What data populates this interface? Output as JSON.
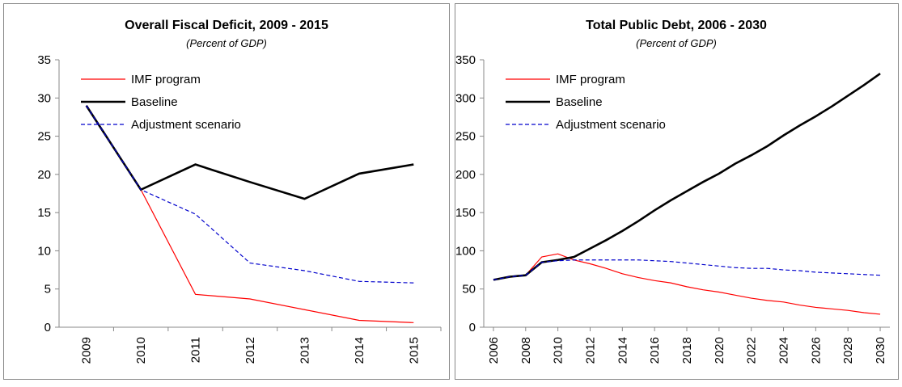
{
  "chart_data": [
    {
      "type": "line",
      "title": "Overall Fiscal Deficit, 2009 - 2015",
      "subtitle": "(Percent of GDP)",
      "categories": [
        "2009",
        "2010",
        "2011",
        "2012",
        "2013",
        "2014",
        "2015"
      ],
      "ylim": [
        0,
        35
      ],
      "yticks": [
        0,
        5,
        10,
        15,
        20,
        25,
        30,
        35
      ],
      "series": [
        {
          "name": "IMF program",
          "color": "#ff0000",
          "width": 1.2,
          "dashed": false,
          "values": [
            29,
            18,
            4.3,
            3.7,
            2.3,
            0.9,
            0.6
          ]
        },
        {
          "name": "Baseline",
          "color": "#000000",
          "width": 2.6,
          "dashed": false,
          "values": [
            29,
            18,
            21.3,
            19,
            16.8,
            20.1,
            21.3
          ]
        },
        {
          "name": "Adjustment scenario",
          "color": "#0000cc",
          "width": 1.2,
          "dashed": true,
          "values": [
            29,
            18,
            14.8,
            8.4,
            7.4,
            6.0,
            5.8
          ]
        }
      ]
    },
    {
      "type": "line",
      "title": "Total Public Debt, 2006 - 2030",
      "subtitle": "(Percent of GDP)",
      "x": [
        2006,
        2007,
        2008,
        2009,
        2010,
        2011,
        2012,
        2013,
        2014,
        2015,
        2016,
        2017,
        2018,
        2019,
        2020,
        2021,
        2022,
        2023,
        2024,
        2025,
        2026,
        2027,
        2028,
        2029,
        2030
      ],
      "xlim": [
        2005.4,
        2030.6
      ],
      "xticks": [
        2006,
        2008,
        2010,
        2012,
        2014,
        2016,
        2018,
        2020,
        2022,
        2024,
        2026,
        2028,
        2030
      ],
      "ylim": [
        0,
        350
      ],
      "yticks": [
        0,
        50,
        100,
        150,
        200,
        250,
        300,
        350
      ],
      "series": [
        {
          "name": "IMF program",
          "color": "#ff0000",
          "width": 1.2,
          "dashed": false,
          "values": [
            62,
            66,
            68,
            92,
            96,
            88,
            83,
            77,
            70,
            65,
            61,
            58,
            53,
            49,
            46,
            42,
            38,
            35,
            33,
            29,
            26,
            24,
            22,
            19,
            17
          ]
        },
        {
          "name": "Baseline",
          "color": "#000000",
          "width": 2.6,
          "dashed": false,
          "values": [
            62,
            66,
            68,
            85,
            88,
            92,
            103,
            114,
            126,
            139,
            153,
            166,
            178,
            190,
            201,
            214,
            225,
            237,
            251,
            264,
            276,
            289,
            303,
            317,
            332
          ]
        },
        {
          "name": "Adjustment scenario",
          "color": "#0000cc",
          "width": 1.2,
          "dashed": true,
          "values": [
            62,
            66,
            68,
            85,
            87,
            88,
            88,
            88,
            88,
            88,
            87,
            86,
            84,
            82,
            80,
            78,
            77,
            77,
            75,
            74,
            72,
            71,
            70,
            69,
            68
          ]
        }
      ]
    }
  ]
}
